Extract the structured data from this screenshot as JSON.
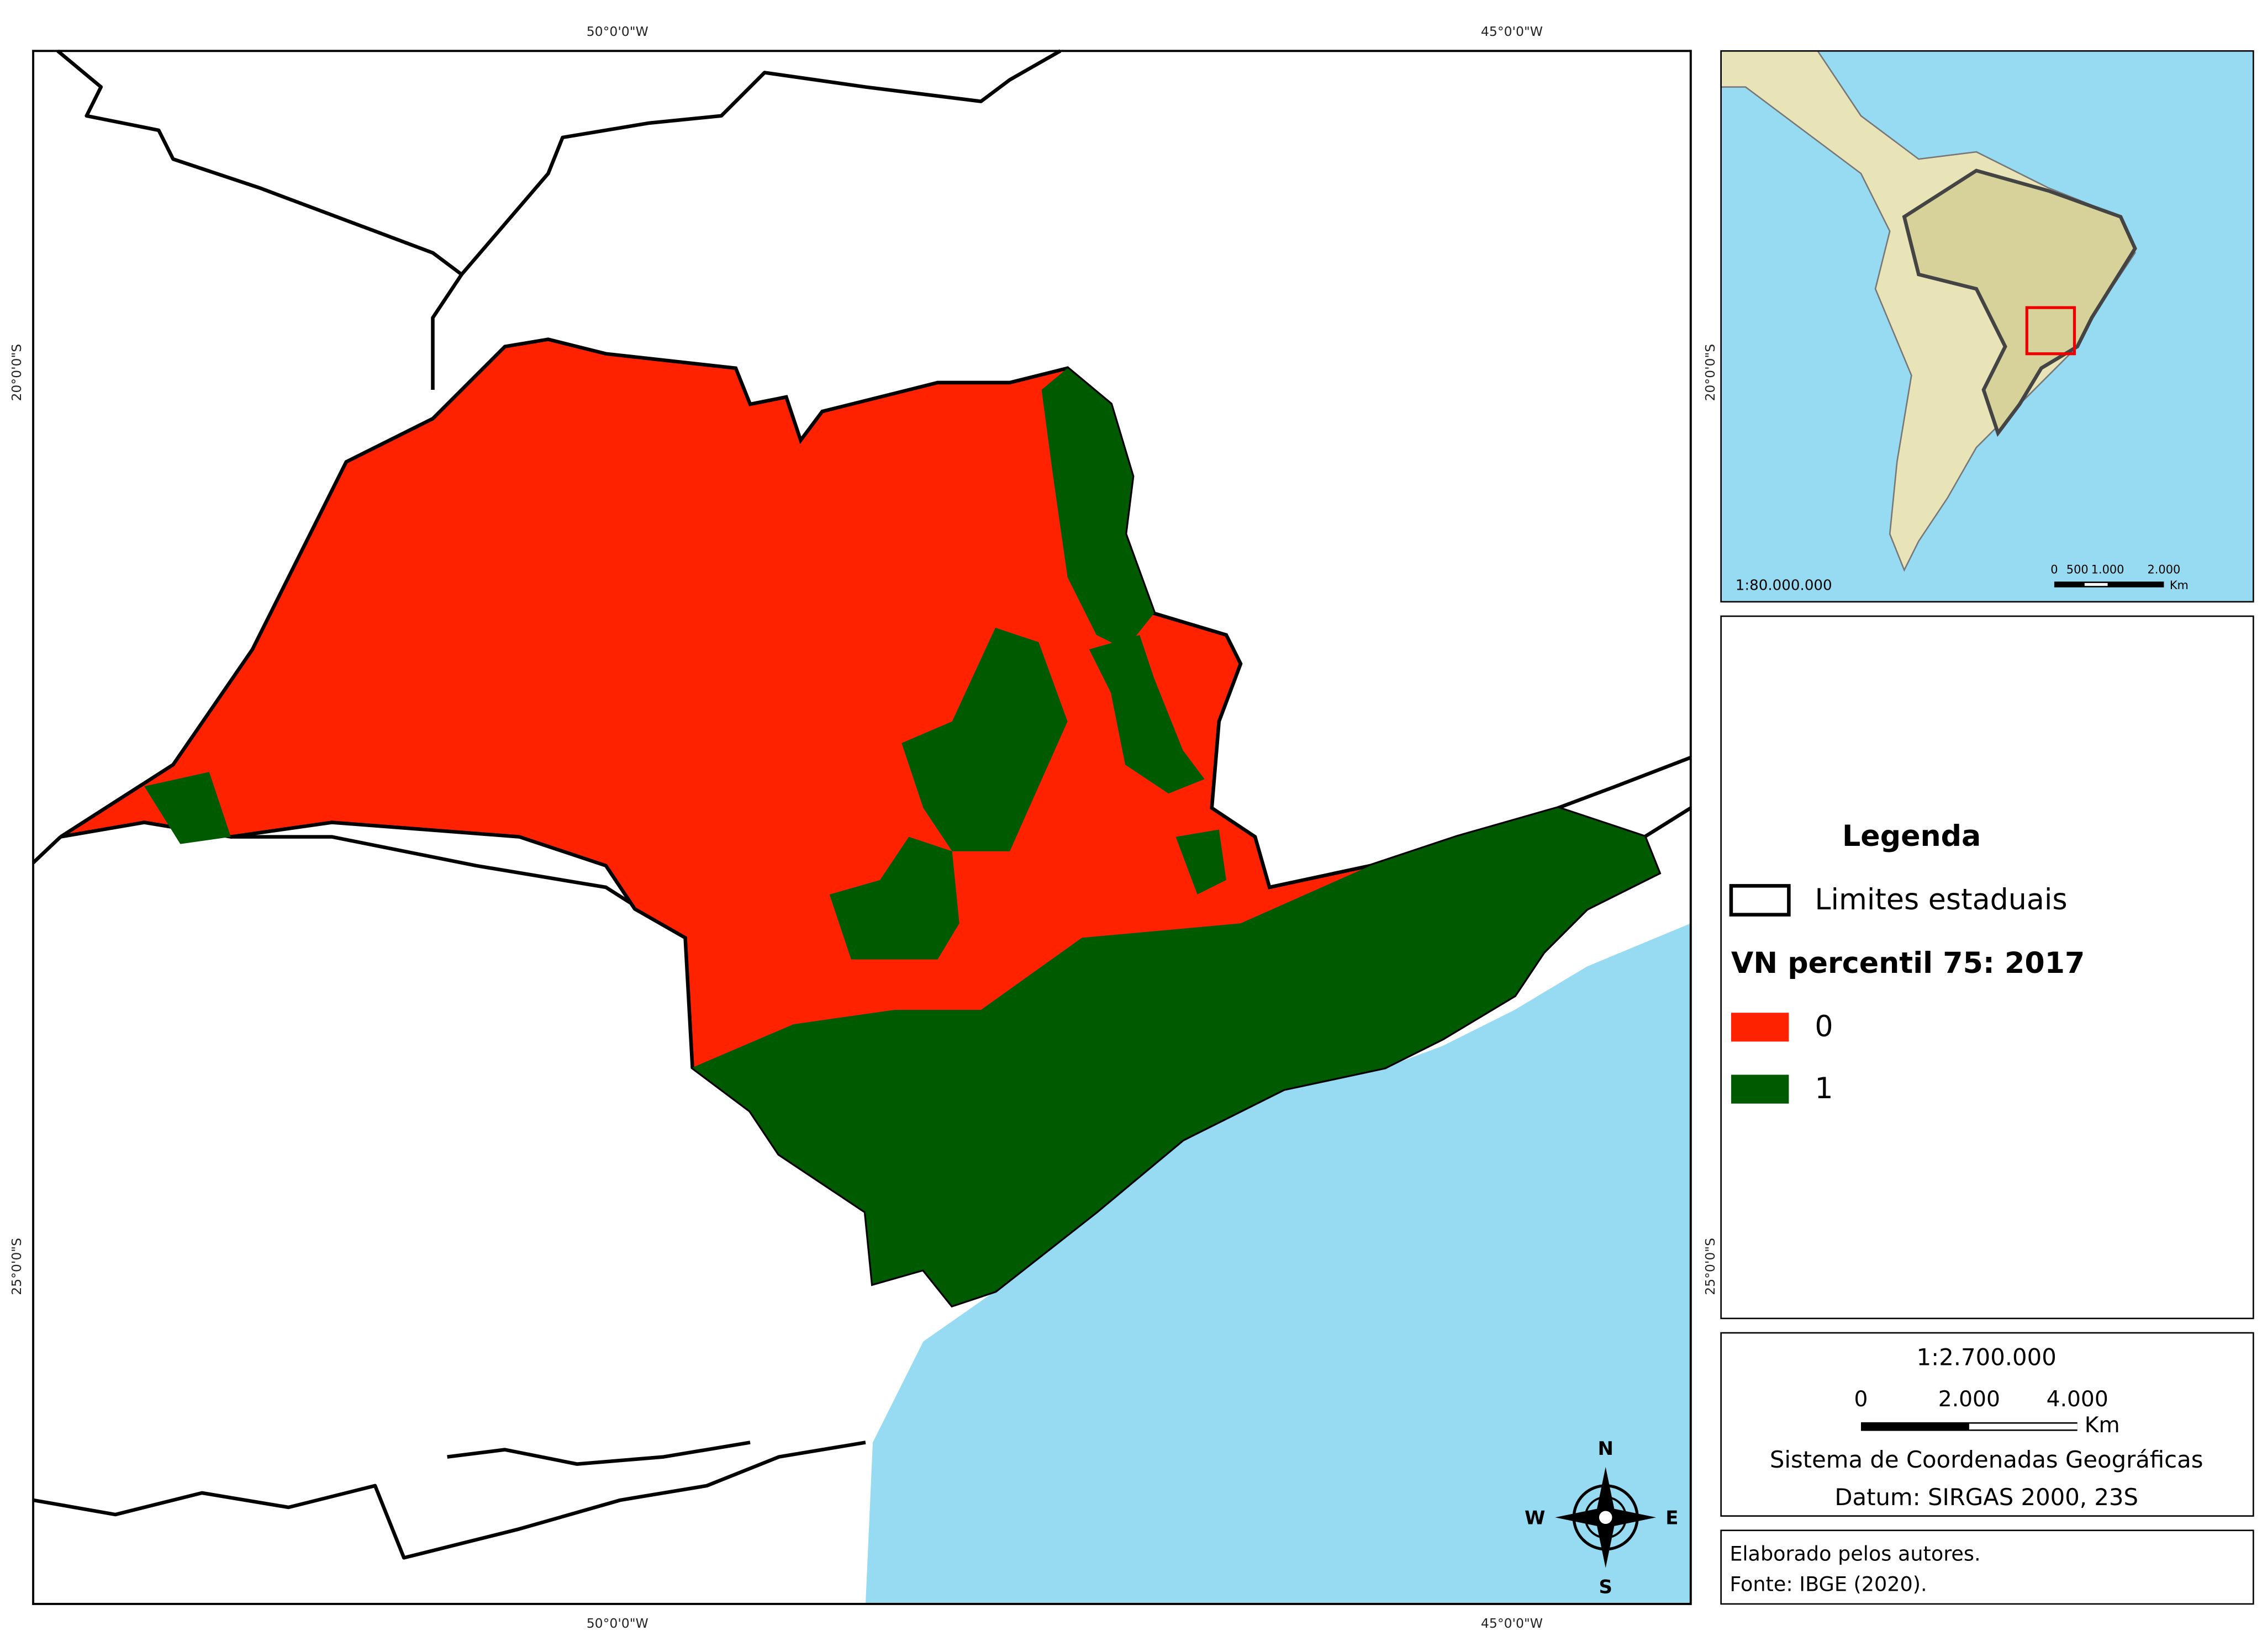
{
  "grid_labels": {
    "top": [
      "50°0'0\"W",
      "45°0'0\"W"
    ],
    "bottom": [
      "50°0'0\"W",
      "45°0'0\"W"
    ],
    "left": [
      "20°0'0\"S",
      "25°0'0\"S"
    ],
    "right": [
      "20°0'0\"S",
      "25°0'0\"S"
    ]
  },
  "legend": {
    "title": "Legenda",
    "boundary_label": "Limites estaduais",
    "variable_title": "VN percentil 75: 2017",
    "classes": [
      {
        "label": "0",
        "color": "#ff2200"
      },
      {
        "label": "1",
        "color": "#005a00"
      }
    ]
  },
  "scale_box": {
    "ratio": "1:2.700.000",
    "ticks": [
      "0",
      "2.000",
      "4.000"
    ],
    "unit": "Km",
    "crs": "Sistema de Coordenadas Geográficas",
    "datum": "Datum: SIRGAS 2000, 23S"
  },
  "credits": [
    "Elaborado pelos autores.",
    "Fonte: IBGE (2020)."
  ],
  "north_arrow": {
    "n": "N",
    "s": "S",
    "w": "W",
    "e": "E"
  },
  "inset": {
    "ratio": "1:80.000.000",
    "ticks": [
      "0",
      "500",
      "1.000",
      "2.000"
    ],
    "unit": "Km"
  },
  "ocean_color": "#97dbf2"
}
